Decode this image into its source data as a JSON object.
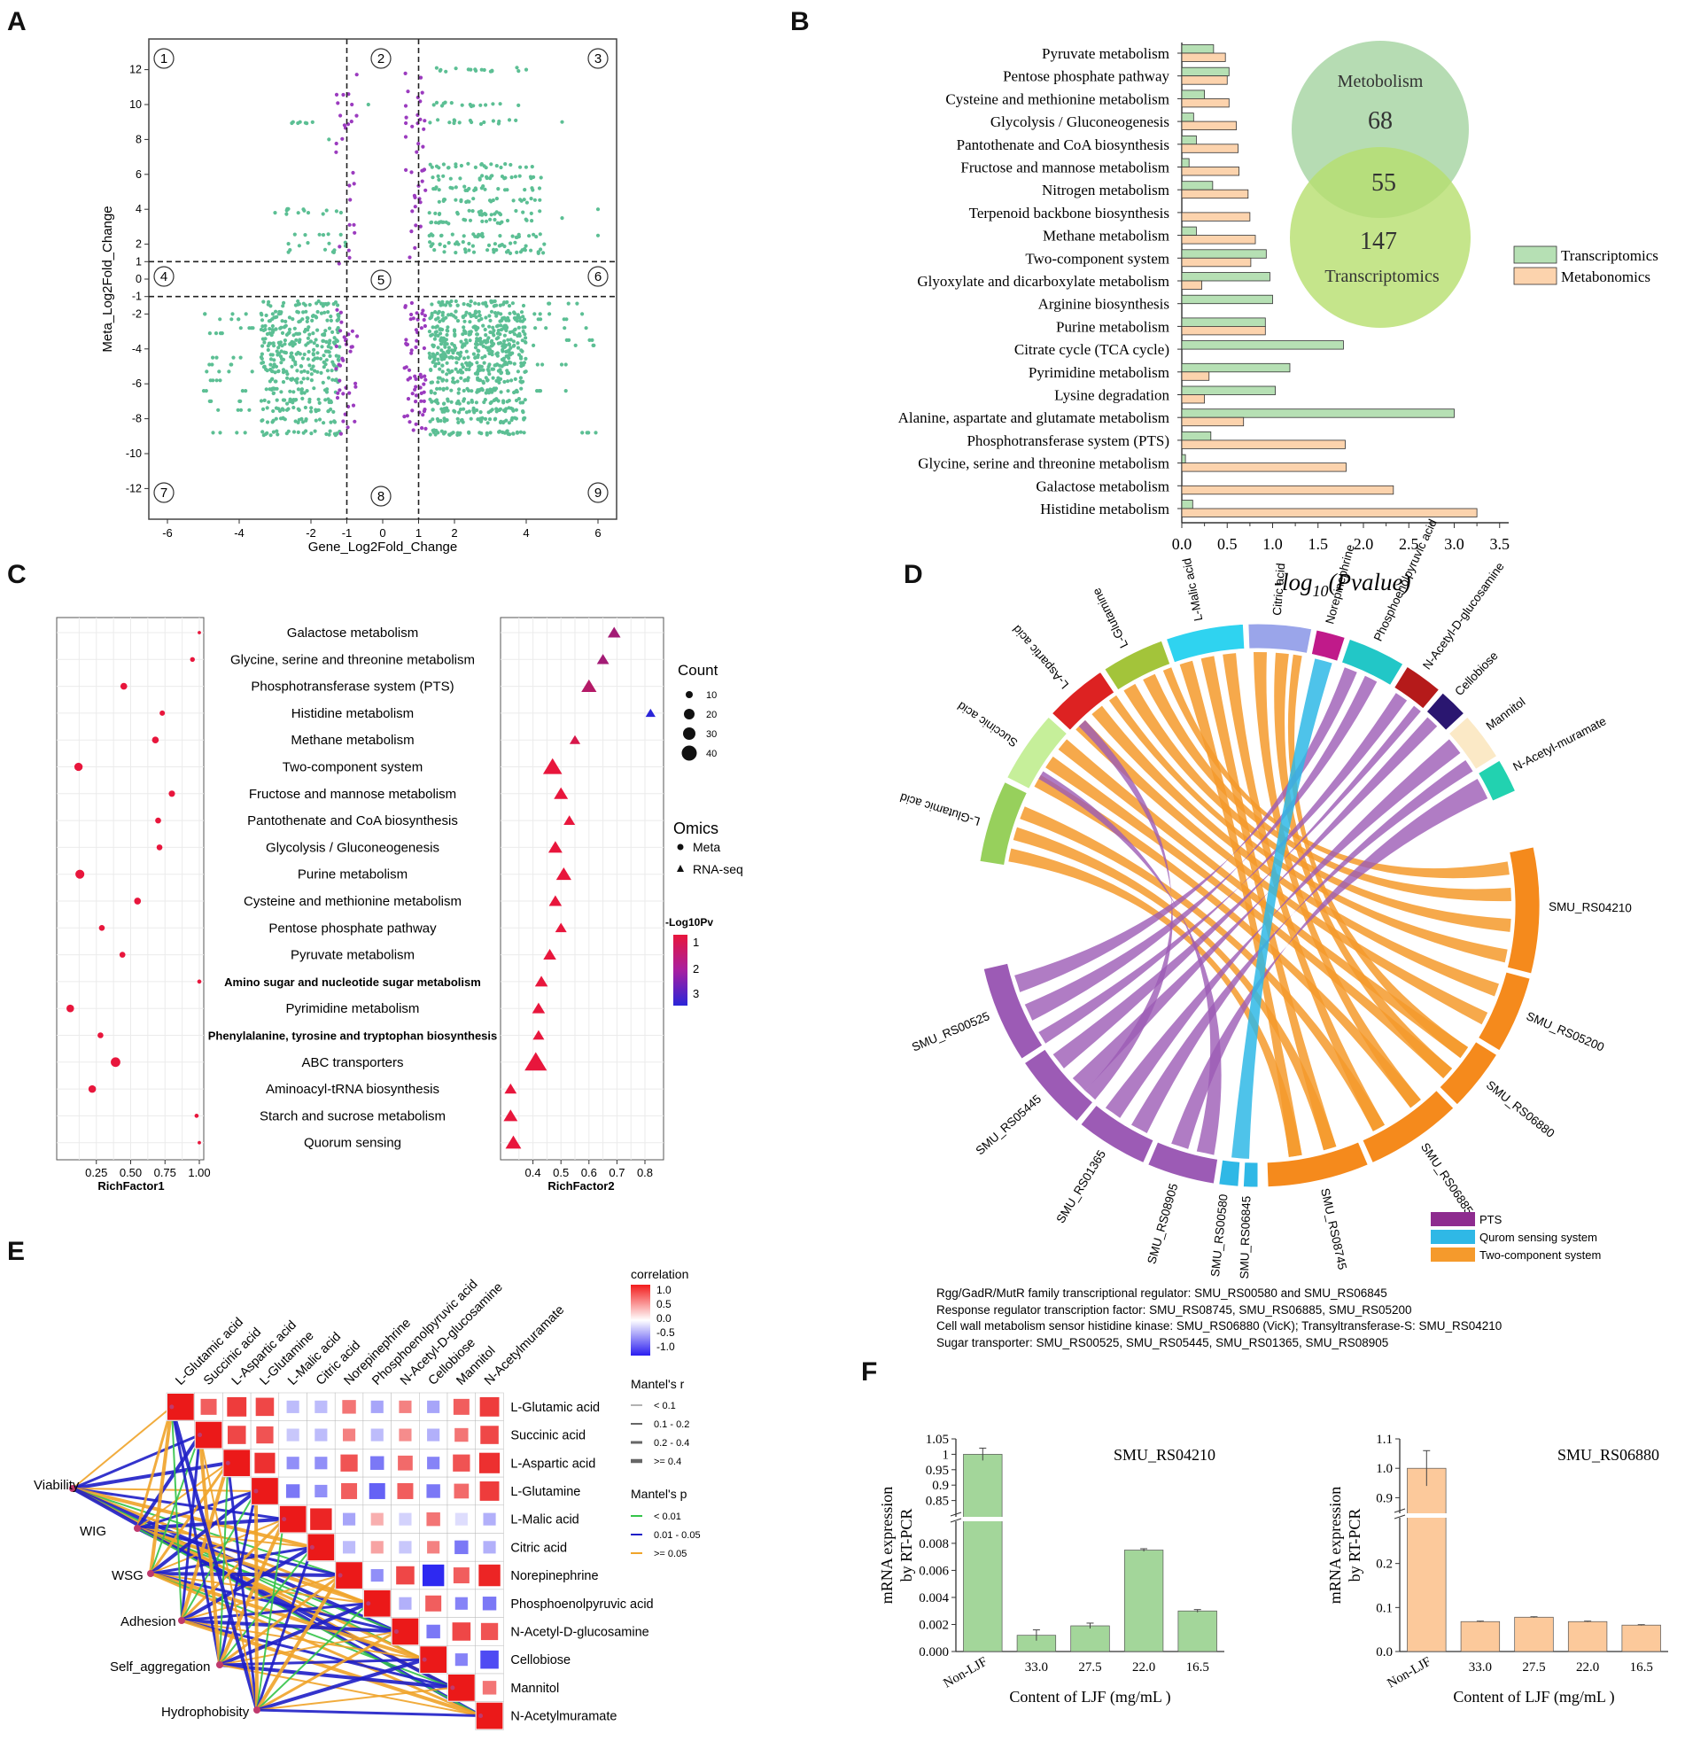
{
  "panels": {
    "A": {
      "letter": "A",
      "xlabel": "Gene_Log2Fold_Change",
      "ylabel": "Meta_Log2Fold_Change",
      "xticks": [
        -6,
        -4,
        -2,
        -1,
        0,
        1,
        2,
        4,
        6
      ],
      "yticks": [
        12,
        10,
        8,
        6,
        4,
        2,
        1,
        0,
        -1,
        -2,
        -4,
        -6,
        -8,
        -10,
        -12
      ],
      "quadrants": [
        "①",
        "②",
        "③",
        "④",
        "⑤",
        "⑥",
        "⑦",
        "⑧",
        "⑨"
      ],
      "colors": {
        "point_green": "#5cbf94",
        "point_purple": "#9b3bbf"
      }
    },
    "B": {
      "letter": "B",
      "xlabel": "-log10(Pvalue)",
      "xlabel_main": "-log",
      "xlabel_sub": "10",
      "xlabel_tail": "(Pvalue)",
      "xticks": [
        "0.0",
        "0.5",
        "1.0",
        "1.5",
        "2.0",
        "2.5",
        "3.0",
        "3.5"
      ],
      "venn": {
        "top_label": "Metobolism",
        "top_value": "68",
        "overlap_value": "55",
        "bottom_value": "147",
        "bottom_label": "Transcriptomics"
      },
      "legend": [
        "Transcriptomics",
        "Metabonomics"
      ],
      "colors": {
        "transcriptomics": "#b6e0b4",
        "metabonomics": "#fcd3ad",
        "venn_top": "#a9d6a6",
        "venn_bottom": "#b7df6e"
      }
    },
    "C": {
      "letter": "C",
      "xlabel1": "RichFactor1",
      "xlabel2": "RichFactor2",
      "x1ticks": [
        "0.25",
        "0.50",
        "0.75",
        "1.00"
      ],
      "x2ticks": [
        "0.4",
        "0.5",
        "0.6",
        "0.7",
        "0.8"
      ],
      "count_title": "Count",
      "count_values": [
        "10",
        "20",
        "30",
        "40"
      ],
      "omics_title": "Omics",
      "omics_items": [
        "Meta",
        "RNA-seq"
      ],
      "pval_title": "-Log10Pv",
      "pval_ticks": [
        "1",
        "2",
        "3"
      ]
    },
    "D": {
      "letter": "D",
      "legend": [
        "PTS",
        "Qurom sensing system",
        "Two-component system"
      ],
      "notes": [
        "Rgg/GadR/MutR family transcriptional regulator: SMU_RS00580 and SMU_RS06845",
        "Response regulator transcription factor: SMU_RS08745, SMU_RS06885, SMU_RS05200",
        "Cell wall metabolism sensor histidine kinase: SMU_RS06880 (VicK);  Transyltransferase-S: SMU_RS04210",
        "Sugar transporter: SMU_RS00525, SMU_RS05445, SMU_RS01365, SMU_RS08905"
      ],
      "colors": {
        "pts": "#9c5bb5",
        "quorum": "#2fb8e6",
        "two_component": "#f59a2c"
      }
    },
    "E": {
      "letter": "E",
      "corr_title": "correlation",
      "corr_ticks": [
        "1.0",
        "0.5",
        "0.0",
        "-0.5",
        "-1.0"
      ],
      "mantel_r_title": "Mantel's r",
      "mantel_r_items": [
        "< 0.1",
        "0.1 - 0.2",
        "0.2 - 0.4",
        ">= 0.4"
      ],
      "mantel_p_title": "Mantel's p",
      "mantel_p_items": [
        "< 0.01",
        "0.01 - 0.05",
        ">= 0.05"
      ],
      "phenotypes": [
        "Viability",
        "WIG",
        "WSG",
        "Adhesion",
        "Self_aggregation",
        "Hydrophobisity"
      ],
      "colors": {
        "p_low": "#35c44a",
        "p_mid": "#1f1fc7",
        "p_high": "#f0a42a"
      }
    },
    "F": {
      "letter": "F",
      "left": {
        "title": "SMU_RS04210",
        "ylabel1": "mRNA expression",
        "ylabel2": "by RT-PCR",
        "xlabel": "Content of LJF (mg/mL )",
        "upper_ticks": [
          "1.05",
          "1",
          "0.95",
          "0.9",
          "0.85"
        ],
        "lower_ticks": [
          "0.008",
          "0.006",
          "0.004",
          "0.002",
          "0.000"
        ],
        "color": "#a3d69a"
      },
      "right": {
        "title": "SMU_RS06880",
        "ylabel1": "mRNA expression",
        "ylabel2": "by RT-PCR",
        "xlabel": "Content of LJF (mg/mL )",
        "upper_ticks": [
          "1.1",
          "1.0",
          "0.9"
        ],
        "lower_ticks": [
          "0.2",
          "0.1",
          "0.0"
        ],
        "color": "#fcc99b"
      }
    }
  },
  "chart_data": [
    {
      "id": "B",
      "type": "bar",
      "orientation": "horizontal",
      "title": "",
      "xlabel": "-log10(Pvalue)",
      "xlim": [
        0,
        3.5
      ],
      "categories": [
        "Pyruvate metabolism",
        "Pentose phosphate pathway",
        "Cysteine and methionine metabolism",
        "Glycolysis / Gluconeogenesis",
        "Pantothenate and CoA biosynthesis",
        "Fructose and mannose metabolism",
        "Nitrogen metabolism",
        "Terpenoid backbone biosynthesis",
        "Methane metabolism",
        "Two-component system",
        "Glyoxylate and dicarboxylate metabolism",
        "Arginine biosynthesis",
        "Purine metabolism",
        "Citrate cycle (TCA cycle)",
        "Pyrimidine metabolism",
        "Lysine degradation",
        "Alanine, aspartate and glutamate metabolism",
        "Phosphotransferase system (PTS)",
        "Glycine, serine and threonine metabolism",
        "Galactose metabolism",
        "Histidine metabolism"
      ],
      "series": [
        {
          "name": "Transcriptomics",
          "values": [
            0.35,
            0.52,
            0.25,
            0.13,
            0.16,
            0.08,
            0.34,
            0.0,
            0.16,
            0.93,
            0.97,
            1.0,
            0.92,
            1.78,
            1.19,
            1.03,
            3.0,
            0.32,
            0.04,
            0.0,
            0.12
          ]
        },
        {
          "name": "Metabonomics",
          "values": [
            0.48,
            0.5,
            0.52,
            0.6,
            0.62,
            0.63,
            0.73,
            0.75,
            0.81,
            0.76,
            0.22,
            0.0,
            0.92,
            0.0,
            0.3,
            0.25,
            0.68,
            1.8,
            1.81,
            2.33,
            3.25
          ]
        }
      ]
    },
    {
      "id": "C",
      "type": "scatter",
      "title": "",
      "pathways": [
        "Galactose metabolism",
        "Glycine, serine and threonine metabolism",
        "Phosphotransferase system (PTS)",
        "Histidine metabolism",
        "Methane metabolism",
        "Two-component system",
        "Fructose and mannose metabolism",
        "Pantothenate and CoA biosynthesis",
        "Glycolysis / Gluconeogenesis",
        "Purine metabolism",
        "Cysteine and methionine metabolism",
        "Pentose phosphate pathway",
        "Pyruvate metabolism",
        "Amino sugar and nucleotide sugar metabolism",
        "Pyrimidine metabolism",
        "Phenylalanine, tyrosine and tryptophan biosynthesis",
        "ABC transporters",
        "Aminoacyl-tRNA biosynthesis",
        "Starch and sucrose metabolism",
        "Quorum sensing"
      ],
      "bold_pathways": [
        "Amino sugar and nucleotide sugar metabolism",
        "Phenylalanine, tyrosine and tryptophan biosynthesis"
      ],
      "meta": {
        "richfactor": [
          1.0,
          0.95,
          0.45,
          0.73,
          0.68,
          0.12,
          0.8,
          0.7,
          0.71,
          0.13,
          0.55,
          0.29,
          0.44,
          1.0,
          0.06,
          0.28,
          0.39,
          0.22,
          0.98,
          1.0
        ],
        "count": [
          2,
          4,
          8,
          5,
          8,
          12,
          7,
          6,
          6,
          14,
          8,
          6,
          6,
          3,
          10,
          6,
          16,
          10,
          3,
          2
        ],
        "neglog10p": [
          1,
          1,
          1,
          1,
          1,
          1,
          1,
          1,
          1,
          1,
          1,
          1,
          1,
          1,
          1,
          1,
          1,
          1,
          1,
          1
        ]
      },
      "rnaseq": {
        "richfactor": [
          0.69,
          0.65,
          0.6,
          0.82,
          0.55,
          0.47,
          0.5,
          0.53,
          0.48,
          0.51,
          0.48,
          0.5,
          0.46,
          0.43,
          0.42,
          0.42,
          0.41,
          0.32,
          0.32,
          0.33
        ],
        "count": [
          10,
          9,
          14,
          6,
          7,
          22,
          12,
          8,
          12,
          14,
          10,
          8,
          10,
          10,
          10,
          8,
          30,
          9,
          12,
          15
        ],
        "neglog10p": [
          1.8,
          1.8,
          1.6,
          3.2,
          1.2,
          1.0,
          1.0,
          1.0,
          1.0,
          1.0,
          1.0,
          1.0,
          1.0,
          1.0,
          1.0,
          1.0,
          1.0,
          1.0,
          1.0,
          1.0
        ]
      }
    },
    {
      "id": "E",
      "type": "heatmap",
      "title": "",
      "labels": [
        "L-Glutamic acid",
        "Succinic acid",
        "L-Aspartic acid",
        "L-Glutamine",
        "L-Malic acid",
        "Citric acid",
        "Norepinephrine",
        "Phosphoenolpyruvic acid",
        "N-Acetyl-D-glucosamine",
        "Cellobiose",
        "Mannitol",
        "N-Acetylmuramate"
      ],
      "label_variants": [
        "N-Acetylmuramate"
      ],
      "matrix": [
        [
          1.0,
          0.7,
          0.85,
          0.8,
          -0.3,
          -0.3,
          0.6,
          -0.4,
          0.55,
          -0.4,
          0.7,
          0.85
        ],
        [
          0,
          1.0,
          0.8,
          0.75,
          -0.25,
          -0.3,
          0.55,
          -0.3,
          0.5,
          -0.35,
          0.6,
          0.8
        ],
        [
          0,
          0,
          1.0,
          0.9,
          -0.5,
          -0.5,
          0.75,
          -0.6,
          0.65,
          -0.55,
          0.75,
          0.9
        ],
        [
          0,
          0,
          0,
          1.0,
          -0.6,
          -0.5,
          0.7,
          -0.7,
          0.7,
          -0.6,
          0.65,
          0.85
        ],
        [
          0,
          0,
          0,
          0,
          1.0,
          0.95,
          -0.4,
          0.35,
          -0.2,
          0.6,
          -0.15,
          -0.35
        ],
        [
          0,
          0,
          0,
          0,
          0,
          1.0,
          -0.3,
          0.4,
          -0.25,
          0.55,
          -0.6,
          -0.35
        ],
        [
          0,
          0,
          0,
          0,
          0,
          0,
          1.0,
          -0.5,
          0.8,
          -0.95,
          0.7,
          0.95
        ],
        [
          0,
          0,
          0,
          0,
          0,
          0,
          0,
          1.0,
          -0.35,
          0.7,
          -0.55,
          -0.6
        ],
        [
          0,
          0,
          0,
          0,
          0,
          0,
          0,
          0,
          1.0,
          -0.6,
          0.8,
          0.75
        ],
        [
          0,
          0,
          0,
          0,
          0,
          0,
          0,
          0,
          0,
          1.0,
          -0.55,
          -0.8
        ],
        [
          0,
          0,
          0,
          0,
          0,
          0,
          0,
          0,
          0,
          0,
          1.0,
          0.6
        ],
        [
          0,
          0,
          0,
          0,
          0,
          0,
          0,
          0,
          0,
          0,
          0,
          1.0
        ]
      ]
    },
    {
      "id": "F-left",
      "type": "bar",
      "title": "SMU_RS04210",
      "xlabel": "Content of LJF (mg/mL )",
      "ylabel": "mRNA expression by RT-PCR",
      "categories": [
        "Non-LJF",
        "33.0",
        "27.5",
        "22.0",
        "16.5"
      ],
      "values": [
        1.0,
        0.0012,
        0.0019,
        0.0075,
        0.003
      ],
      "errors": [
        0.02,
        0.0004,
        0.0002,
        0.0001,
        0.0001
      ],
      "ylim_upper": [
        0.8,
        1.05
      ],
      "ylim_lower": [
        0,
        0.0095
      ]
    },
    {
      "id": "F-right",
      "type": "bar",
      "title": "SMU_RS06880",
      "xlabel": "Content of LJF (mg/mL )",
      "ylabel": "mRNA expression by RT-PCR",
      "categories": [
        "Non-LJF",
        "33.0",
        "27.5",
        "22.0",
        "16.5"
      ],
      "values": [
        1.0,
        0.068,
        0.078,
        0.068,
        0.06
      ],
      "errors": [
        0.06,
        0.001,
        0.001,
        0.001,
        0.001
      ],
      "ylim_upper": [
        0.85,
        1.1
      ],
      "ylim_lower": [
        0,
        0.3
      ]
    },
    {
      "id": "D",
      "type": "chord",
      "metabolites": [
        "L-Glutamic acid",
        "Succinic acid",
        "L-Aspartic acid",
        "L-Glutamine",
        "L-Malic acid",
        "Citric acid",
        "Norepinephrine",
        "Phosphoenolpyruvic acid",
        "N-Acetyl-D-glucosamine",
        "Cellobiose",
        "Mannitol",
        "N-Acetyl-muramate"
      ],
      "genes": [
        "SMU_RS00525",
        "SMU_RS05445",
        "SMU_RS01365",
        "SMU_RS08905",
        "SMU_RS00580",
        "SMU_RS06845",
        "SMU_RS08745",
        "SMU_RS06885",
        "SMU_RS06880",
        "SMU_RS05200",
        "SMU_RS04210"
      ]
    }
  ]
}
